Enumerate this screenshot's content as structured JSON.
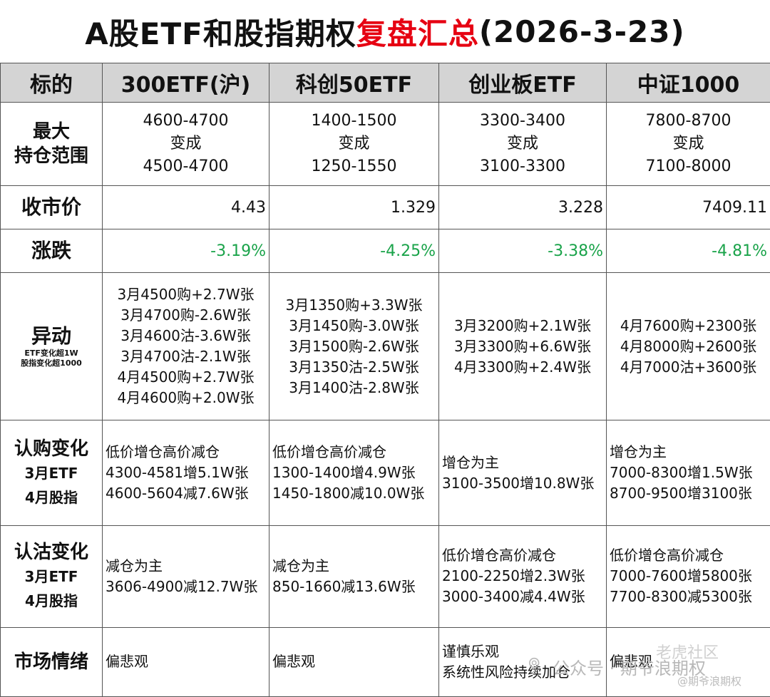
{
  "title": {
    "prefix": "A股ETF和股指期权",
    "highlight": "复盘汇总",
    "suffix": "(2026-3-23)"
  },
  "header": {
    "label": "标的",
    "cols": [
      "300ETF(沪)",
      "科创50ETF",
      "创业板ETF",
      "中证1000"
    ]
  },
  "range": {
    "label1": "最大",
    "label2": "持仓范围",
    "cells": [
      [
        "4600-4700",
        "变成",
        "4500-4700"
      ],
      [
        "1400-1500",
        "变成",
        "1250-1550"
      ],
      [
        "3300-3400",
        "变成",
        "3100-3300"
      ],
      [
        "7800-8700",
        "变成",
        "7100-8000"
      ]
    ]
  },
  "close": {
    "label": "收市价",
    "values": [
      "4.43",
      "1.329",
      "3.228",
      "7409.11"
    ]
  },
  "change": {
    "label": "涨跌",
    "values": [
      "-3.19%",
      "-4.25%",
      "-3.38%",
      "-4.81%"
    ],
    "color": "#1aa34a"
  },
  "abnormal": {
    "label": "异动",
    "note1": "ETF变化超1W",
    "note2": "股指变化超1000",
    "cells": [
      [
        "3月4500购+2.7W张",
        "3月4700购-2.6W张",
        "3月4600沽-3.6W张",
        "3月4700沽-2.1W张",
        "4月4500购+2.7W张",
        "4月4600购+2.0W张"
      ],
      [
        "3月1350购+3.3W张",
        "3月1450购-3.0W张",
        "3月1500购-2.6W张",
        "3月1350沽-2.5W张",
        "3月1400沽-2.8W张"
      ],
      [
        "3月3200购+2.1W张",
        "3月3300购+6.6W张",
        "4月3300购+2.4W张"
      ],
      [
        "4月7600购+2300张",
        "4月8000购+2600张",
        "4月7000沽+3600张"
      ]
    ]
  },
  "call": {
    "label1": "认购变化",
    "label2": "3月ETF",
    "label3": "4月股指",
    "cells": [
      [
        "低价增仓高价减仓",
        "4300-4581增5.1W张",
        "4600-5604减7.6W张"
      ],
      [
        "低价增仓高价减仓",
        "1300-1400增4.9W张",
        "1450-1800减10.0W张"
      ],
      [
        "增仓为主",
        "3100-3500增10.8W张"
      ],
      [
        "增仓为主",
        "7000-8300增1.5W张",
        "8700-9500增3100张"
      ]
    ]
  },
  "put": {
    "label1": "认沽变化",
    "label2": "3月ETF",
    "label3": "4月股指",
    "cells": [
      [
        "减仓为主",
        "3606-4900减12.7W张"
      ],
      [
        "减仓为主",
        "850-1660减13.6W张"
      ],
      [
        "低价增仓高价减仓",
        "2100-2250增2.3W张",
        "3000-3400减4.4W张"
      ],
      [
        "低价增仓高价减仓",
        "7000-7600增5800张",
        "7700-8300减5300张"
      ]
    ]
  },
  "mood": {
    "label": "市场情绪",
    "cells": [
      [
        "偏悲观"
      ],
      [
        "偏悲观"
      ],
      [
        "谨慎乐观",
        "系统性风险持续加仓"
      ],
      [
        "偏悲观"
      ]
    ]
  },
  "watermark": {
    "wechat": "公众号 · 期爷浪期权",
    "community": "老虎社区",
    "handle": "@期爷浪期权",
    "icon": "wechat-icon"
  }
}
